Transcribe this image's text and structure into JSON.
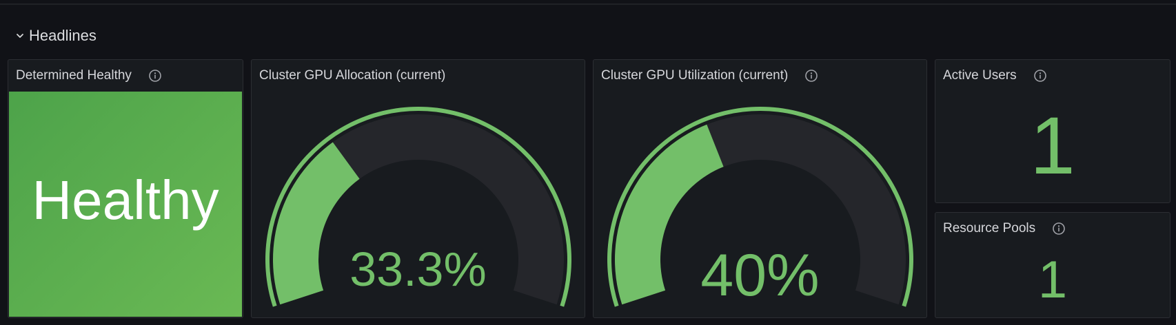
{
  "row": {
    "title": "Headlines",
    "collapse_icon": "chevron-down-icon"
  },
  "colors": {
    "background": "#111217",
    "panel": "#181b1f",
    "panel_border": "#2c2e33",
    "accent_green": "#73bf69",
    "healthy_green": "#56a64b",
    "gauge_track": "#25262b"
  },
  "panels": {
    "determined_healthy": {
      "title": "Determined Healthy",
      "value": "Healthy",
      "icon": "info-icon"
    },
    "gpu_allocation": {
      "title": "Cluster GPU Allocation (current)",
      "value_text": "33.3%",
      "value": 33.3,
      "min": 0,
      "max": 100
    },
    "gpu_utilization": {
      "title": "Cluster GPU Utilization (current)",
      "value_text": "40%",
      "value": 40,
      "min": 0,
      "max": 100,
      "icon": "info-icon"
    },
    "active_users": {
      "title": "Active Users",
      "value": "1",
      "icon": "info-icon"
    },
    "resource_pools": {
      "title": "Resource Pools",
      "value": "1",
      "icon": "info-icon"
    }
  }
}
